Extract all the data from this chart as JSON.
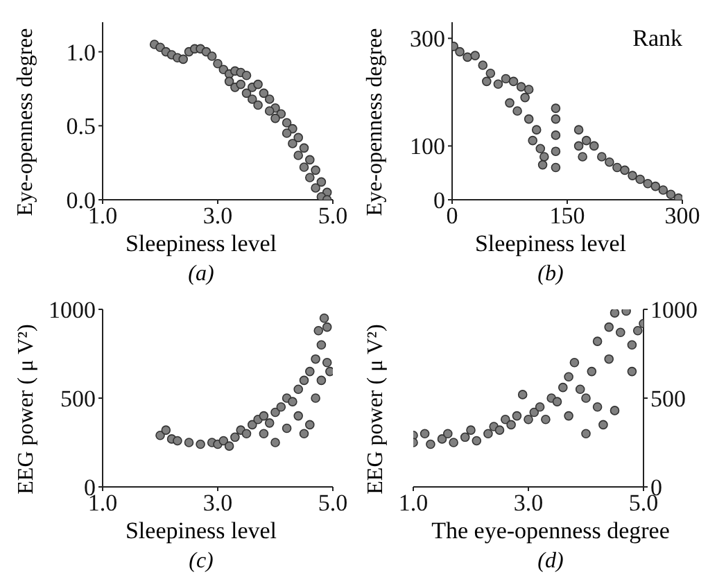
{
  "chart_data": [
    {
      "type": "scatter",
      "xlabel": "Sleepiness level",
      "ylabel": "Eye-openness degree",
      "xlim": [
        1,
        5
      ],
      "xticks": [
        {
          "value": 1,
          "label": "1.0"
        },
        {
          "value": 3,
          "label": "3.0"
        },
        {
          "value": 5,
          "label": "5.0"
        }
      ],
      "ylim": [
        0,
        1.2
      ],
      "yticks": [
        {
          "value": 0,
          "label": "0.0"
        },
        {
          "value": 0.5,
          "label": "0.5"
        },
        {
          "value": 1,
          "label": "1.0"
        }
      ],
      "marker": "circle",
      "annotations": [
        "(a)"
      ],
      "series": [
        {
          "color": "#808080",
          "x": [
            1.9,
            2.0,
            2.1,
            2.2,
            2.3,
            2.4,
            2.5,
            2.6,
            2.7,
            2.8,
            2.9,
            3.0,
            3.1,
            3.2,
            3.3,
            3.4,
            3.5,
            3.2,
            3.3,
            3.5,
            3.6,
            3.7,
            3.8,
            3.9,
            4.0,
            4.1,
            4.0,
            4.2,
            4.3,
            4.2,
            4.4,
            4.3,
            4.5,
            4.4,
            4.6,
            4.5,
            4.7,
            4.6,
            4.8,
            4.7,
            4.9,
            4.8,
            4.9,
            3.4,
            3.6,
            3.7,
            3.9
          ],
          "values": [
            1.05,
            1.03,
            1.0,
            0.98,
            0.96,
            0.95,
            1.0,
            1.02,
            1.02,
            1.0,
            0.97,
            0.92,
            0.88,
            0.85,
            0.87,
            0.86,
            0.84,
            0.8,
            0.76,
            0.72,
            0.76,
            0.78,
            0.72,
            0.68,
            0.62,
            0.58,
            0.55,
            0.52,
            0.48,
            0.45,
            0.42,
            0.38,
            0.35,
            0.3,
            0.27,
            0.22,
            0.2,
            0.15,
            0.12,
            0.08,
            0.05,
            0.02,
            0.0,
            0.78,
            0.68,
            0.64,
            0.6
          ]
        }
      ]
    },
    {
      "type": "scatter",
      "xlabel": "Sleepiness level",
      "ylabel": "Eye-openness degree",
      "xlim": [
        0,
        300
      ],
      "xticks": [
        0,
        150,
        300
      ],
      "ylim": [
        0,
        330
      ],
      "yticks": [
        0,
        100,
        300
      ],
      "marker": "circle",
      "annotations": [
        "Rank",
        "(b)"
      ],
      "series": [
        {
          "color": "#808080",
          "x": [
            2,
            10,
            20,
            30,
            40,
            50,
            45,
            60,
            70,
            80,
            90,
            100,
            95,
            75,
            85,
            100,
            110,
            105,
            115,
            120,
            118,
            135,
            135,
            135,
            135,
            135,
            165,
            165,
            170,
            175,
            185,
            195,
            205,
            215,
            225,
            235,
            245,
            255,
            265,
            275,
            285,
            295
          ],
          "values": [
            285,
            275,
            265,
            268,
            250,
            235,
            220,
            215,
            225,
            220,
            210,
            205,
            190,
            180,
            165,
            150,
            130,
            110,
            95,
            80,
            65,
            60,
            90,
            120,
            150,
            170,
            130,
            100,
            80,
            110,
            100,
            80,
            70,
            60,
            55,
            45,
            38,
            30,
            25,
            18,
            10,
            3
          ]
        }
      ]
    },
    {
      "type": "scatter",
      "xlabel": "Sleepiness level",
      "ylabel": "EEG power ( μ V²)",
      "xlim": [
        1,
        5
      ],
      "xticks": [
        {
          "value": 1,
          "label": "1.0"
        },
        {
          "value": 3,
          "label": "3.0"
        },
        {
          "value": 5,
          "label": "5.0"
        }
      ],
      "ylim": [
        0,
        1000
      ],
      "yticks": [
        0,
        500,
        1000
      ],
      "marker": "circle",
      "annotations": [
        "(c)"
      ],
      "series": [
        {
          "color": "#808080",
          "x": [
            2.0,
            2.1,
            2.2,
            2.3,
            2.5,
            2.7,
            2.9,
            3.0,
            3.1,
            3.3,
            3.4,
            3.5,
            3.6,
            3.7,
            3.8,
            3.9,
            4.0,
            4.1,
            4.2,
            4.3,
            4.0,
            4.2,
            4.4,
            4.5,
            4.4,
            4.6,
            4.6,
            4.7,
            4.7,
            4.8,
            4.8,
            4.75,
            4.85,
            4.9,
            4.9,
            4.95,
            4.5,
            3.8,
            3.2
          ],
          "values": [
            290,
            320,
            270,
            260,
            250,
            240,
            250,
            240,
            260,
            280,
            320,
            300,
            350,
            380,
            400,
            360,
            420,
            450,
            500,
            480,
            250,
            330,
            550,
            600,
            400,
            650,
            350,
            720,
            500,
            800,
            600,
            880,
            950,
            900,
            700,
            650,
            300,
            300,
            230
          ]
        }
      ]
    },
    {
      "type": "scatter",
      "xlabel": "The eye-openness degree",
      "ylabel": "EEG power ( μ V²)",
      "xlim": [
        1,
        5
      ],
      "xticks": [
        {
          "value": 1,
          "label": "1.0"
        },
        {
          "value": 3,
          "label": "3.0"
        },
        {
          "value": 5,
          "label": "5.0"
        }
      ],
      "y2lim": [
        0,
        1000
      ],
      "y2ticks": [
        0,
        500,
        1000
      ],
      "marker": "circle",
      "annotations": [
        "(d)"
      ],
      "series": [
        {
          "color": "#808080",
          "axis": "y2",
          "x": [
            1.0,
            1.0,
            1.2,
            1.3,
            1.5,
            1.6,
            1.7,
            1.9,
            2.0,
            2.1,
            2.3,
            2.4,
            2.5,
            2.6,
            2.7,
            2.8,
            2.9,
            3.0,
            3.1,
            3.2,
            3.3,
            3.4,
            3.5,
            3.6,
            3.7,
            3.7,
            3.8,
            3.9,
            4.0,
            4.0,
            4.1,
            4.2,
            4.2,
            4.3,
            4.4,
            4.4,
            4.5,
            4.5,
            4.6,
            4.7,
            4.8,
            4.9,
            5.0,
            4.8
          ],
          "values": [
            290,
            250,
            300,
            240,
            270,
            300,
            250,
            280,
            320,
            260,
            300,
            340,
            320,
            380,
            350,
            400,
            520,
            380,
            420,
            450,
            380,
            500,
            480,
            560,
            620,
            400,
            700,
            550,
            500,
            300,
            650,
            450,
            820,
            350,
            900,
            720,
            430,
            980,
            870,
            990,
            800,
            880,
            920,
            650
          ]
        }
      ]
    }
  ]
}
